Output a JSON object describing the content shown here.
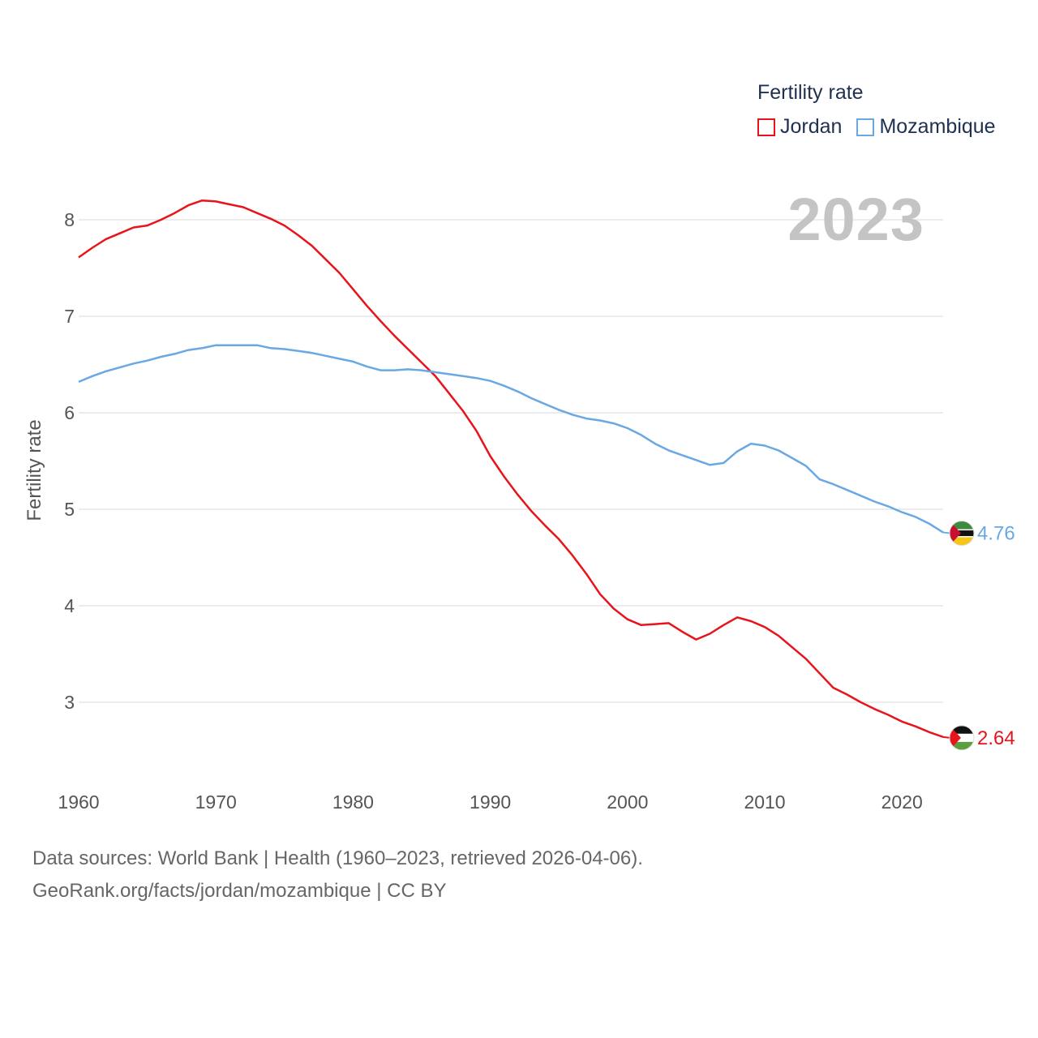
{
  "legend": {
    "title": "Fertility rate",
    "items": [
      {
        "label": "Jordan",
        "color": "#e8141b"
      },
      {
        "label": "Mozambique",
        "color": "#6aa8e4"
      }
    ]
  },
  "year_label": "2023",
  "source": {
    "line1": "Data sources: World Bank | Health (1960–2023, retrieved 2026-04-06).",
    "line2": "GeoRank.org/facts/jordan/mozambique | CC BY"
  },
  "chart_data": {
    "type": "line",
    "title": "Fertility rate",
    "xlabel": "",
    "ylabel": "Fertility rate",
    "xlim": [
      1960,
      2023
    ],
    "ylim": [
      2.4,
      8.4
    ],
    "x_ticks": [
      1960,
      1970,
      1980,
      1990,
      2000,
      2010,
      2020
    ],
    "y_ticks": [
      3,
      4,
      5,
      6,
      7,
      8
    ],
    "grid": true,
    "legend_position": "top-right",
    "x": [
      1960,
      1961,
      1962,
      1963,
      1964,
      1965,
      1966,
      1967,
      1968,
      1969,
      1970,
      1971,
      1972,
      1973,
      1974,
      1975,
      1976,
      1977,
      1978,
      1979,
      1980,
      1981,
      1982,
      1983,
      1984,
      1985,
      1986,
      1987,
      1988,
      1989,
      1990,
      1991,
      1992,
      1993,
      1994,
      1995,
      1996,
      1997,
      1998,
      1999,
      2000,
      2001,
      2002,
      2003,
      2004,
      2005,
      2006,
      2007,
      2008,
      2009,
      2010,
      2011,
      2012,
      2013,
      2014,
      2015,
      2016,
      2017,
      2018,
      2019,
      2020,
      2021,
      2022,
      2023
    ],
    "series": [
      {
        "name": "Jordan",
        "color": "#e8141b",
        "end_label": "2.64",
        "values": [
          7.61,
          7.71,
          7.8,
          7.86,
          7.92,
          7.94,
          8.0,
          8.07,
          8.15,
          8.2,
          8.19,
          8.16,
          8.13,
          8.07,
          8.01,
          7.94,
          7.84,
          7.73,
          7.59,
          7.45,
          7.28,
          7.11,
          6.95,
          6.8,
          6.66,
          6.52,
          6.38,
          6.2,
          6.02,
          5.81,
          5.55,
          5.34,
          5.15,
          4.98,
          4.83,
          4.69,
          4.52,
          4.33,
          4.12,
          3.97,
          3.86,
          3.8,
          3.81,
          3.82,
          3.73,
          3.65,
          3.71,
          3.8,
          3.88,
          3.84,
          3.78,
          3.69,
          3.57,
          3.45,
          3.3,
          3.15,
          3.08,
          3.0,
          2.93,
          2.87,
          2.8,
          2.75,
          2.69,
          2.64
        ]
      },
      {
        "name": "Mozambique",
        "color": "#6aa8e4",
        "end_label": "4.76",
        "values": [
          6.32,
          6.38,
          6.43,
          6.47,
          6.51,
          6.54,
          6.58,
          6.61,
          6.65,
          6.67,
          6.7,
          6.7,
          6.7,
          6.7,
          6.67,
          6.66,
          6.64,
          6.62,
          6.59,
          6.56,
          6.53,
          6.48,
          6.44,
          6.44,
          6.45,
          6.44,
          6.42,
          6.4,
          6.38,
          6.36,
          6.33,
          6.28,
          6.22,
          6.15,
          6.09,
          6.03,
          5.98,
          5.94,
          5.92,
          5.89,
          5.84,
          5.77,
          5.68,
          5.61,
          5.56,
          5.51,
          5.46,
          5.48,
          5.6,
          5.68,
          5.66,
          5.61,
          5.53,
          5.45,
          5.31,
          5.26,
          5.2,
          5.14,
          5.08,
          5.03,
          4.97,
          4.92,
          4.85,
          4.76
        ]
      }
    ]
  }
}
